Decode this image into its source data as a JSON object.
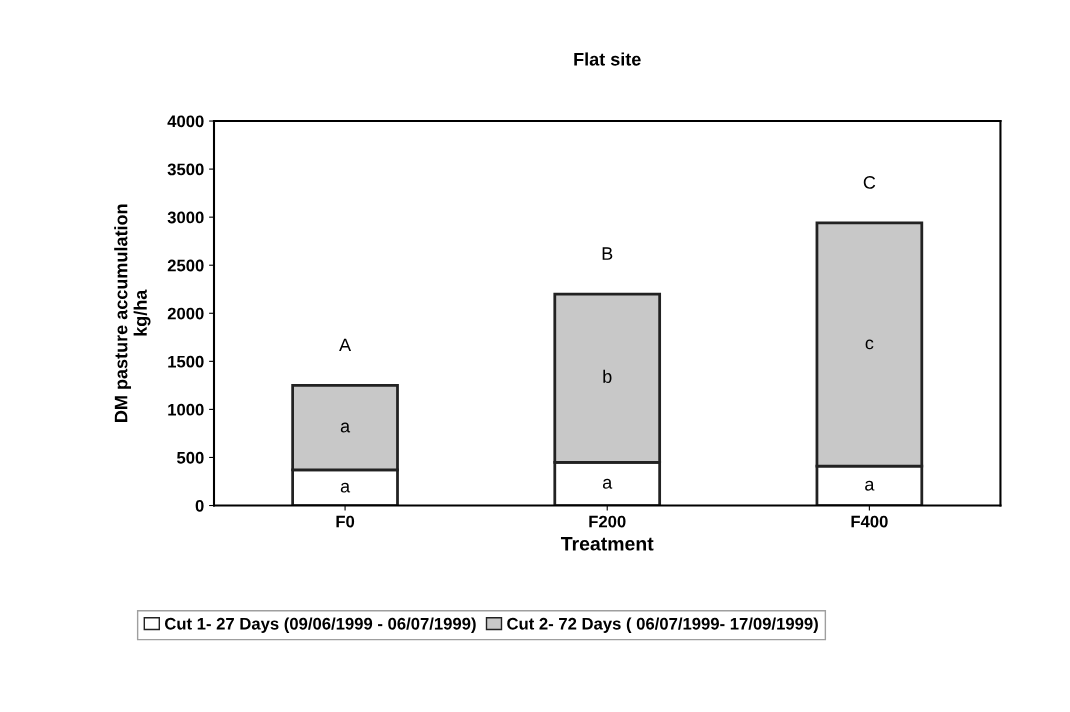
{
  "chart_data": {
    "type": "bar",
    "title": "Flat site",
    "xlabel": "Treatment",
    "ylabel": "DM pasture accumulation\nkg/ha",
    "categories": [
      "F0",
      "F200",
      "F400"
    ],
    "stacked": true,
    "series": [
      {
        "name": "Cut 1- 27 Days (09/06/1999 - 06/07/1999)",
        "color": "#ffffff",
        "values": [
          370,
          450,
          410
        ],
        "value_labels": [
          "a",
          "a",
          "a"
        ]
      },
      {
        "name": "Cut 2- 72 Days ( 06/07/1999- 17/09/1999)",
        "color": "#c8c8c8",
        "values": [
          880,
          1750,
          2530
        ],
        "value_labels": [
          "a",
          "b",
          "c"
        ]
      }
    ],
    "totals": [
      "A",
      "B",
      "C"
    ],
    "ylim": [
      0,
      4000
    ],
    "yticks": [
      0,
      500,
      1000,
      1500,
      2000,
      2500,
      3000,
      3500,
      4000
    ],
    "grid": false,
    "legend": "bottom"
  }
}
